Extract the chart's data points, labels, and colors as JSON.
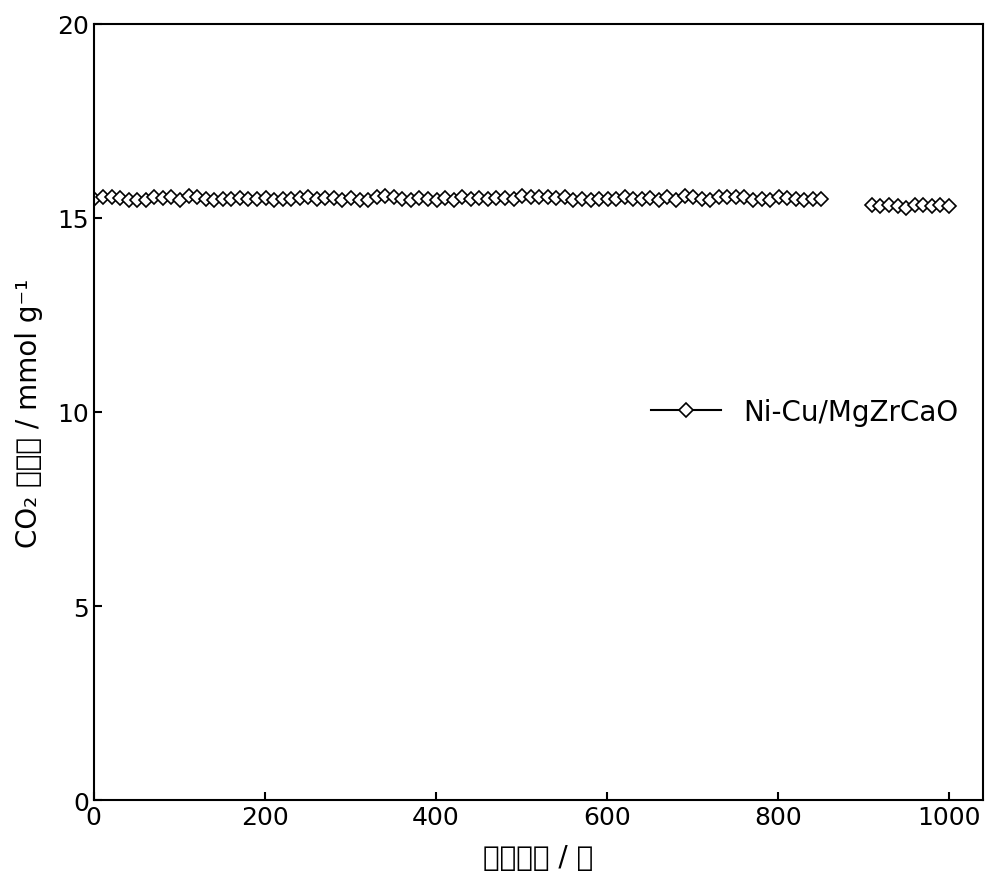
{
  "x_dense_start": 1,
  "x_dense_end": 860,
  "x_dense_step": 10,
  "x_sparse_start": 910,
  "x_sparse_end": 1000,
  "x_sparse_step": 10,
  "y_value": 15.5,
  "y_value_sparse": 15.3,
  "xlim": [
    0,
    1040
  ],
  "ylim": [
    0,
    20
  ],
  "xticks": [
    0,
    200,
    400,
    600,
    800,
    1000
  ],
  "yticks": [
    0,
    5,
    10,
    15,
    20
  ],
  "xlabel": "循环次数 / 次",
  "ylabel": "CO₂ 吸附量 / mmol g⁻¹",
  "legend_label": "Ni-Cu/MgZrCaO",
  "line_color": "#000000",
  "marker": "D",
  "markersize": 7,
  "linewidth": 1.5,
  "background_color": "#ffffff",
  "tick_fontsize": 18,
  "label_fontsize": 20,
  "legend_fontsize": 20
}
